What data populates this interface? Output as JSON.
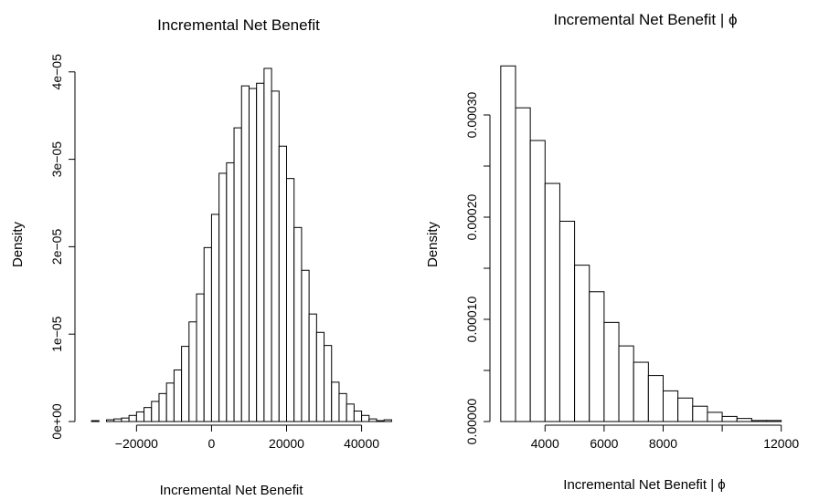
{
  "chart_data": [
    {
      "type": "bar",
      "title": "Incremental Net Benefit",
      "xlabel": "Incremental Net Benefit",
      "ylabel": "Density",
      "xlim": [
        -33000,
        44000
      ],
      "ylim": [
        0,
        4.05e-05
      ],
      "x_ticks": [
        -20000,
        0,
        20000,
        40000
      ],
      "x_tick_labels": [
        "−20000",
        "0",
        "20000",
        "40000"
      ],
      "y_ticks": [
        0,
        1e-05,
        2e-05,
        3e-05,
        4e-05
      ],
      "y_tick_labels": [
        "0e+00",
        "1e−05",
        "2e−05",
        "3e−05",
        "4e−05"
      ],
      "bin_width": 2000,
      "bins": [
        {
          "x0": -32000,
          "x1": -30000,
          "density": 1e-07
        },
        {
          "x0": -30000,
          "x1": -28000,
          "density": 0
        },
        {
          "x0": -28000,
          "x1": -26000,
          "density": 2e-07
        },
        {
          "x0": -26000,
          "x1": -24000,
          "density": 3e-07
        },
        {
          "x0": -24000,
          "x1": -22000,
          "density": 4e-07
        },
        {
          "x0": -22000,
          "x1": -20000,
          "density": 7e-07
        },
        {
          "x0": -20000,
          "x1": -18000,
          "density": 1.1e-06
        },
        {
          "x0": -18000,
          "x1": -16000,
          "density": 1.6e-06
        },
        {
          "x0": -16000,
          "x1": -14000,
          "density": 2.3e-06
        },
        {
          "x0": -14000,
          "x1": -12000,
          "density": 3.2e-06
        },
        {
          "x0": -12000,
          "x1": -10000,
          "density": 4.4e-06
        },
        {
          "x0": -10000,
          "x1": -8000,
          "density": 5.9e-06
        },
        {
          "x0": -8000,
          "x1": -6000,
          "density": 8.6e-06
        },
        {
          "x0": -6000,
          "x1": -4000,
          "density": 1.14e-05
        },
        {
          "x0": -4000,
          "x1": -2000,
          "density": 1.46e-05
        },
        {
          "x0": -2000,
          "x1": 0,
          "density": 1.99e-05
        },
        {
          "x0": 0,
          "x1": 2000,
          "density": 2.37e-05
        },
        {
          "x0": 2000,
          "x1": 4000,
          "density": 2.84e-05
        },
        {
          "x0": 4000,
          "x1": 6000,
          "density": 2.96e-05
        },
        {
          "x0": 6000,
          "x1": 8000,
          "density": 3.36e-05
        },
        {
          "x0": 8000,
          "x1": 10000,
          "density": 3.84e-05
        },
        {
          "x0": 10000,
          "x1": 12000,
          "density": 3.81e-05
        },
        {
          "x0": 12000,
          "x1": 14000,
          "density": 3.87e-05
        },
        {
          "x0": 14000,
          "x1": 16000,
          "density": 4.04e-05
        },
        {
          "x0": 16000,
          "x1": 18000,
          "density": 3.78e-05
        },
        {
          "x0": 18000,
          "x1": 20000,
          "density": 3.15e-05
        },
        {
          "x0": 20000,
          "x1": 22000,
          "density": 2.78e-05
        },
        {
          "x0": 22000,
          "x1": 24000,
          "density": 2.22e-05
        },
        {
          "x0": 24000,
          "x1": 26000,
          "density": 1.73e-05
        },
        {
          "x0": 26000,
          "x1": 28000,
          "density": 1.23e-05
        },
        {
          "x0": 28000,
          "x1": 30000,
          "density": 1.02e-05
        },
        {
          "x0": 30000,
          "x1": 32000,
          "density": 8.7e-06
        },
        {
          "x0": 32000,
          "x1": 34000,
          "density": 4.5e-06
        },
        {
          "x0": 34000,
          "x1": 36000,
          "density": 3.2e-06
        },
        {
          "x0": 36000,
          "x1": 38000,
          "density": 2e-06
        },
        {
          "x0": 38000,
          "x1": 40000,
          "density": 1.2e-06
        },
        {
          "x0": 40000,
          "x1": 42000,
          "density": 7e-07
        },
        {
          "x0": 42000,
          "x1": 44000,
          "density": 3e-07
        },
        {
          "x0": 44000,
          "x1": 46000,
          "density": 1e-07
        },
        {
          "x0": 46000,
          "x1": 48000,
          "density": 2e-07
        }
      ],
      "grid": false,
      "legend": "none"
    },
    {
      "type": "bar",
      "title": "Incremental Net Benefit | ϕ",
      "xlabel": "Incremental Net Benefit | ϕ",
      "ylabel": "Density",
      "xlim": [
        2350,
        12350
      ],
      "ylim": [
        0,
        0.00035
      ],
      "x_ticks": [
        4000,
        6000,
        8000,
        12000
      ],
      "x_tick_labels": [
        "4000",
        "6000",
        "8000",
        "12000"
      ],
      "x_minor_ticks": [
        10000
      ],
      "y_ticks": [
        0,
        0.0001,
        0.0002,
        0.0003
      ],
      "y_tick_labels": [
        "0.00000",
        "0.00010",
        "0.00020",
        "0.00030"
      ],
      "bin_width": 500,
      "bins": [
        {
          "x0": 2500,
          "x1": 3000,
          "density": 0.000348
        },
        {
          "x0": 3000,
          "x1": 3500,
          "density": 0.000307
        },
        {
          "x0": 3500,
          "x1": 4000,
          "density": 0.000275
        },
        {
          "x0": 4000,
          "x1": 4500,
          "density": 0.000233
        },
        {
          "x0": 4500,
          "x1": 5000,
          "density": 0.000196
        },
        {
          "x0": 5000,
          "x1": 5500,
          "density": 0.000153
        },
        {
          "x0": 5500,
          "x1": 6000,
          "density": 0.000127
        },
        {
          "x0": 6000,
          "x1": 6500,
          "density": 9.7e-05
        },
        {
          "x0": 6500,
          "x1": 7000,
          "density": 7.4e-05
        },
        {
          "x0": 7000,
          "x1": 7500,
          "density": 5.8e-05
        },
        {
          "x0": 7500,
          "x1": 8000,
          "density": 4.5e-05
        },
        {
          "x0": 8000,
          "x1": 8500,
          "density": 3e-05
        },
        {
          "x0": 8500,
          "x1": 9000,
          "density": 2.3e-05
        },
        {
          "x0": 9000,
          "x1": 9500,
          "density": 1.5e-05
        },
        {
          "x0": 9500,
          "x1": 10000,
          "density": 9e-06
        },
        {
          "x0": 10000,
          "x1": 10500,
          "density": 5e-06
        },
        {
          "x0": 10500,
          "x1": 11000,
          "density": 3e-06
        },
        {
          "x0": 11000,
          "x1": 11500,
          "density": 1e-06
        },
        {
          "x0": 11500,
          "x1": 12000,
          "density": 1e-06
        }
      ],
      "grid": false,
      "legend": "none"
    }
  ]
}
